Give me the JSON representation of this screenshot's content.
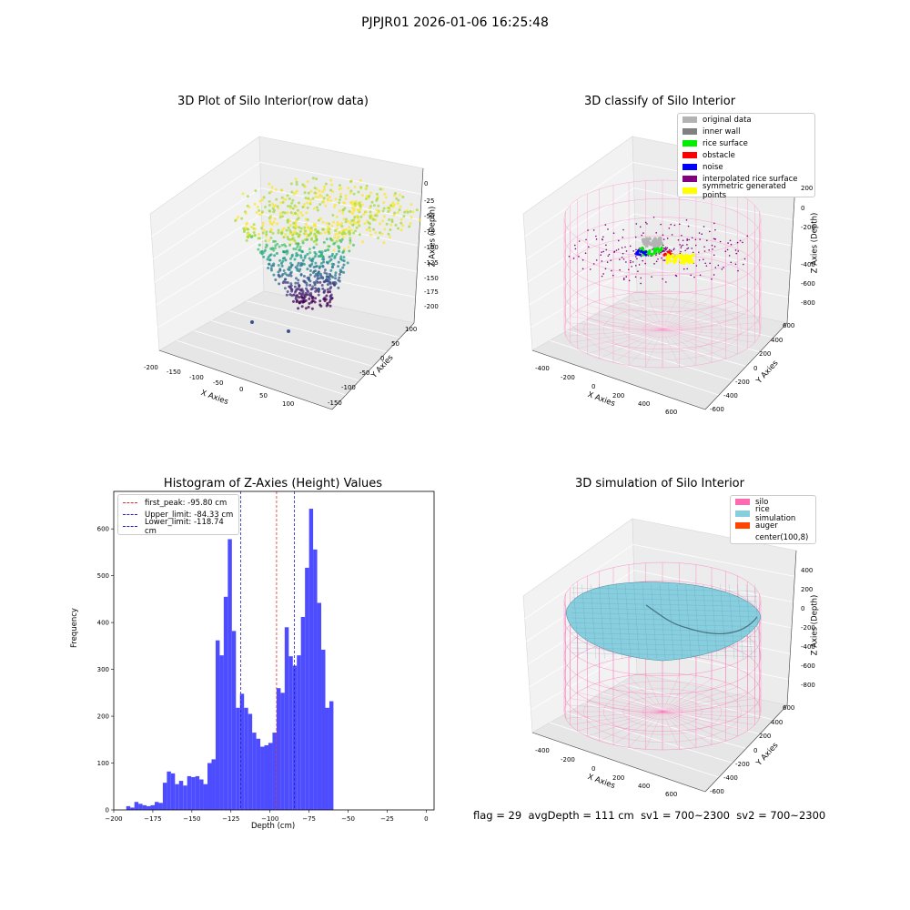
{
  "suptitle": "PJPJR01 2026-01-06 16:25:48",
  "footer": {
    "flag": "flag = 29",
    "avg_depth": "avgDepth = 111 cm",
    "sv1": "sv1 = 700~2300",
    "sv2": "sv2 = 700~2300"
  },
  "colors": {
    "hist_bar": "#4d4dff",
    "first_peak": "#e03030",
    "limits": "#2020c0",
    "silo": "#ff69b4",
    "rice_simulation": "#87cedf",
    "auger": "#ff4500",
    "original_data": "#b3b3b3",
    "inner_wall": "#808080",
    "rice_surface": "#00ee00",
    "obstacle": "#ff0000",
    "noise": "#0000ff",
    "interpolated_rice_surface": "#800080",
    "symmetric_generated_points": "#ffff00"
  },
  "chart_data": [
    {
      "type": "scatter",
      "title": "3D Plot of Silo Interior(row data)",
      "xlabel": "X Axies",
      "ylabel": "Y Axies",
      "zlabel": "Z Axies (Depth)",
      "xticks": [
        "-200",
        "-150",
        "-100",
        "-50",
        "0",
        "50",
        "100"
      ],
      "yticks": [
        "-150",
        "-100",
        "-50",
        "0",
        "50",
        "100"
      ],
      "zticks": [
        "0",
        "-25",
        "-50",
        "-75",
        "-100",
        "-125",
        "-150",
        "-175",
        "-200"
      ],
      "xlim": [
        -230,
        120
      ],
      "ylim": [
        -170,
        120
      ],
      "zlim": [
        -205,
        5
      ],
      "colormap": "viridis"
    },
    {
      "type": "scatter",
      "title": "3D classify of Silo Interior",
      "xlabel": "X Axies",
      "ylabel": "Y Axies",
      "zlabel": "Z Axies (Depth)",
      "xticks": [
        "-400",
        "-200",
        "0",
        "200",
        "400",
        "600"
      ],
      "yticks": [
        "-600",
        "-400",
        "-200",
        "0",
        "200",
        "400",
        "600"
      ],
      "zticks": [
        "200",
        "0",
        "-200",
        "-400",
        "-600",
        "-800"
      ],
      "legend": [
        "original data",
        "inner wall",
        "rice surface",
        "obstacle",
        "noise",
        "interpolated rice surface",
        "symmetric generated points"
      ],
      "legend_position": "top-right"
    },
    {
      "type": "bar",
      "title": "Histogram of Z-Axies (Height) Values",
      "xlabel": "Depth (cm)",
      "ylabel": "Frequency",
      "xlim": [
        -200,
        5
      ],
      "ylim": [
        0,
        680
      ],
      "xticks": [
        -200,
        -175,
        -150,
        -125,
        -100,
        -75,
        -50,
        -25,
        0
      ],
      "yticks": [
        0,
        100,
        200,
        300,
        400,
        500,
        600
      ],
      "bin_start": -192,
      "bin_width": 2.6,
      "values": [
        8,
        5,
        17,
        13,
        10,
        8,
        10,
        17,
        15,
        58,
        82,
        78,
        55,
        62,
        52,
        72,
        70,
        72,
        65,
        55,
        100,
        108,
        362,
        330,
        455,
        578,
        382,
        218,
        248,
        218,
        205,
        165,
        152,
        135,
        138,
        143,
        165,
        260,
        250,
        390,
        328,
        308,
        330,
        412,
        517,
        643,
        556,
        442,
        342,
        218,
        232
      ],
      "vlines": [
        {
          "label": "first_peak: -95.80 cm",
          "x": -95.8,
          "color_key": "first_peak"
        },
        {
          "label": "Upper_limit: -84.33 cm",
          "x": -84.33,
          "color_key": "limits"
        },
        {
          "label": "Lower_limit: -118.74 cm",
          "x": -118.74,
          "color_key": "limits"
        }
      ],
      "legend_position": "top-left"
    },
    {
      "type": "scatter",
      "title": "3D simulation of Silo Interior",
      "xlabel": "X Axies",
      "ylabel": "Y Axies",
      "zlabel": "Z Axies (Depth)",
      "xticks": [
        "-400",
        "-200",
        "0",
        "200",
        "400",
        "600"
      ],
      "yticks": [
        "-600",
        "-400",
        "-200",
        "0",
        "200",
        "400",
        "600"
      ],
      "zticks": [
        "400",
        "200",
        "0",
        "-200",
        "-400",
        "-600",
        "-800"
      ],
      "legend": [
        "silo",
        "rice simulation",
        "auger",
        "center(100,8)"
      ],
      "legend_position": "top-right"
    }
  ]
}
